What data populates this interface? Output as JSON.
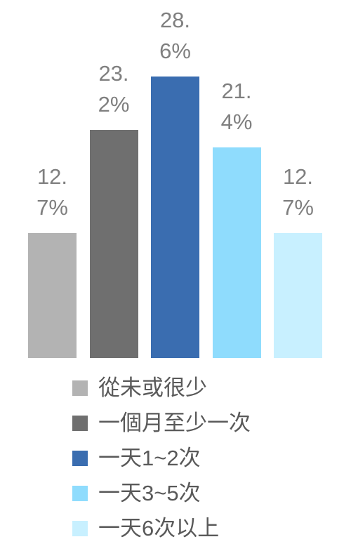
{
  "chart_data": {
    "type": "bar",
    "categories": [
      "從未或很少",
      "一個月至少一次",
      "一天1~2次",
      "一天3~5次",
      "一天6次以上"
    ],
    "values": [
      12.7,
      23.2,
      28.6,
      21.4,
      12.7
    ],
    "value_labels": [
      "12.7%",
      "23.2%",
      "28.6%",
      "21.4%",
      "12.7%"
    ],
    "colors": [
      "#b3b3b3",
      "#6f6f6f",
      "#3a6db0",
      "#8fdcfd",
      "#c8f0ff"
    ],
    "legend": "bottom"
  }
}
